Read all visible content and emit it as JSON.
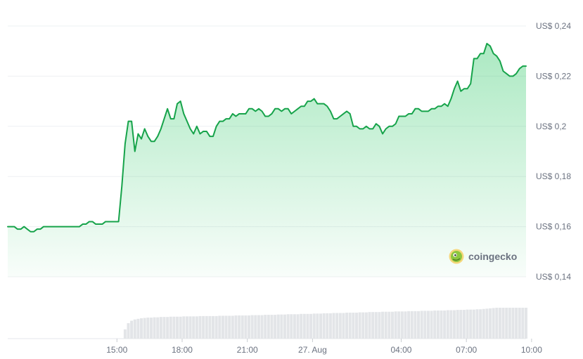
{
  "chart_data": {
    "type": "area",
    "series": [
      {
        "values": [
          0.16,
          0.16,
          0.16,
          0.159,
          0.159,
          0.16,
          0.159,
          0.158,
          0.158,
          0.159,
          0.159,
          0.16,
          0.16,
          0.16,
          0.16,
          0.16,
          0.16,
          0.16,
          0.16,
          0.16,
          0.16,
          0.16,
          0.16,
          0.161,
          0.161,
          0.162,
          0.162,
          0.161,
          0.161,
          0.161,
          0.162,
          0.162,
          0.162,
          0.162,
          0.162,
          0.176,
          0.193,
          0.202,
          0.202,
          0.19,
          0.197,
          0.195,
          0.199,
          0.196,
          0.194,
          0.194,
          0.196,
          0.199,
          0.203,
          0.207,
          0.203,
          0.203,
          0.209,
          0.21,
          0.205,
          0.202,
          0.199,
          0.197,
          0.2,
          0.197,
          0.198,
          0.198,
          0.196,
          0.196,
          0.2,
          0.202,
          0.202,
          0.203,
          0.203,
          0.205,
          0.204,
          0.205,
          0.205,
          0.205,
          0.207,
          0.207,
          0.206,
          0.207,
          0.206,
          0.204,
          0.204,
          0.205,
          0.207,
          0.207,
          0.206,
          0.207,
          0.207,
          0.205,
          0.206,
          0.207,
          0.208,
          0.208,
          0.21,
          0.21,
          0.211,
          0.209,
          0.209,
          0.209,
          0.208,
          0.206,
          0.203,
          0.203,
          0.204,
          0.205,
          0.206,
          0.205,
          0.2,
          0.2,
          0.199,
          0.199,
          0.2,
          0.199,
          0.199,
          0.201,
          0.2,
          0.197,
          0.199,
          0.2,
          0.2,
          0.201,
          0.204,
          0.204,
          0.204,
          0.205,
          0.205,
          0.207,
          0.207,
          0.206,
          0.206,
          0.206,
          0.207,
          0.207,
          0.208,
          0.208,
          0.209,
          0.208,
          0.211,
          0.215,
          0.218,
          0.214,
          0.215,
          0.215,
          0.217,
          0.227,
          0.227,
          0.229,
          0.229,
          0.233,
          0.232,
          0.229,
          0.228,
          0.226,
          0.222,
          0.221,
          0.22,
          0.22,
          0.221,
          0.223,
          0.224,
          0.224
        ]
      }
    ],
    "volume": [
      0,
      0,
      0,
      0,
      0,
      0,
      0,
      0,
      0,
      0,
      0,
      0,
      0,
      0,
      0,
      0,
      0,
      0,
      0,
      0,
      0,
      0,
      0,
      0,
      0,
      0,
      0,
      0,
      0,
      0,
      0,
      0,
      0,
      0,
      0,
      0,
      0.3,
      0.5,
      0.58,
      0.62,
      0.64,
      0.66,
      0.67,
      0.68,
      0.68,
      0.69,
      0.69,
      0.7,
      0.7,
      0.7,
      0.71,
      0.71,
      0.71,
      0.71,
      0.72,
      0.72,
      0.72,
      0.72,
      0.72,
      0.73,
      0.73,
      0.73,
      0.73,
      0.73,
      0.73,
      0.74,
      0.74,
      0.74,
      0.74,
      0.74,
      0.75,
      0.75,
      0.75,
      0.75,
      0.75,
      0.76,
      0.76,
      0.76,
      0.76,
      0.77,
      0.77,
      0.77,
      0.77,
      0.78,
      0.78,
      0.78,
      0.79,
      0.79,
      0.79,
      0.79,
      0.8,
      0.8,
      0.8,
      0.8,
      0.81,
      0.81,
      0.81,
      0.82,
      0.82,
      0.82,
      0.83,
      0.83,
      0.83,
      0.83,
      0.84,
      0.84,
      0.84,
      0.84,
      0.85,
      0.85,
      0.85,
      0.86,
      0.86,
      0.86,
      0.86,
      0.87,
      0.87,
      0.87,
      0.87,
      0.88,
      0.88,
      0.88,
      0.88,
      0.89,
      0.89,
      0.89,
      0.89,
      0.9,
      0.9,
      0.9,
      0.9,
      0.91,
      0.91,
      0.91,
      0.91,
      0.92,
      0.92,
      0.92,
      0.93,
      0.93,
      0.93,
      0.94,
      0.94,
      0.94,
      0.95,
      0.95,
      0.96,
      0.97,
      0.98,
      0.99,
      1.0,
      1.0,
      1.0,
      1.0,
      1.0,
      1.0,
      1.0,
      1.0,
      1.0,
      1.0
    ],
    "y_ticks": [
      {
        "value": 0.24,
        "label": "US$ 0,24"
      },
      {
        "value": 0.22,
        "label": "US$ 0,22"
      },
      {
        "value": 0.2,
        "label": "US$ 0,2"
      },
      {
        "value": 0.18,
        "label": "US$ 0,18"
      },
      {
        "value": 0.16,
        "label": "US$ 0,16"
      },
      {
        "value": 0.14,
        "label": "US$ 0,14"
      }
    ],
    "x_ticks": [
      {
        "index": 33.5,
        "label": "15:00"
      },
      {
        "index": 53.5,
        "label": "18:00"
      },
      {
        "index": 73.5,
        "label": "21:00"
      },
      {
        "index": 93.5,
        "label": "27. Aug"
      },
      {
        "index": 120.7,
        "label": "04:00"
      },
      {
        "index": 140.7,
        "label": "07:00"
      },
      {
        "index": 160.7,
        "label": "10:00"
      }
    ],
    "ylim": [
      0.14,
      0.24
    ],
    "line_color": "#16a34a",
    "fill_color": "#22c55e",
    "grid": true,
    "watermark": "coingecko"
  }
}
